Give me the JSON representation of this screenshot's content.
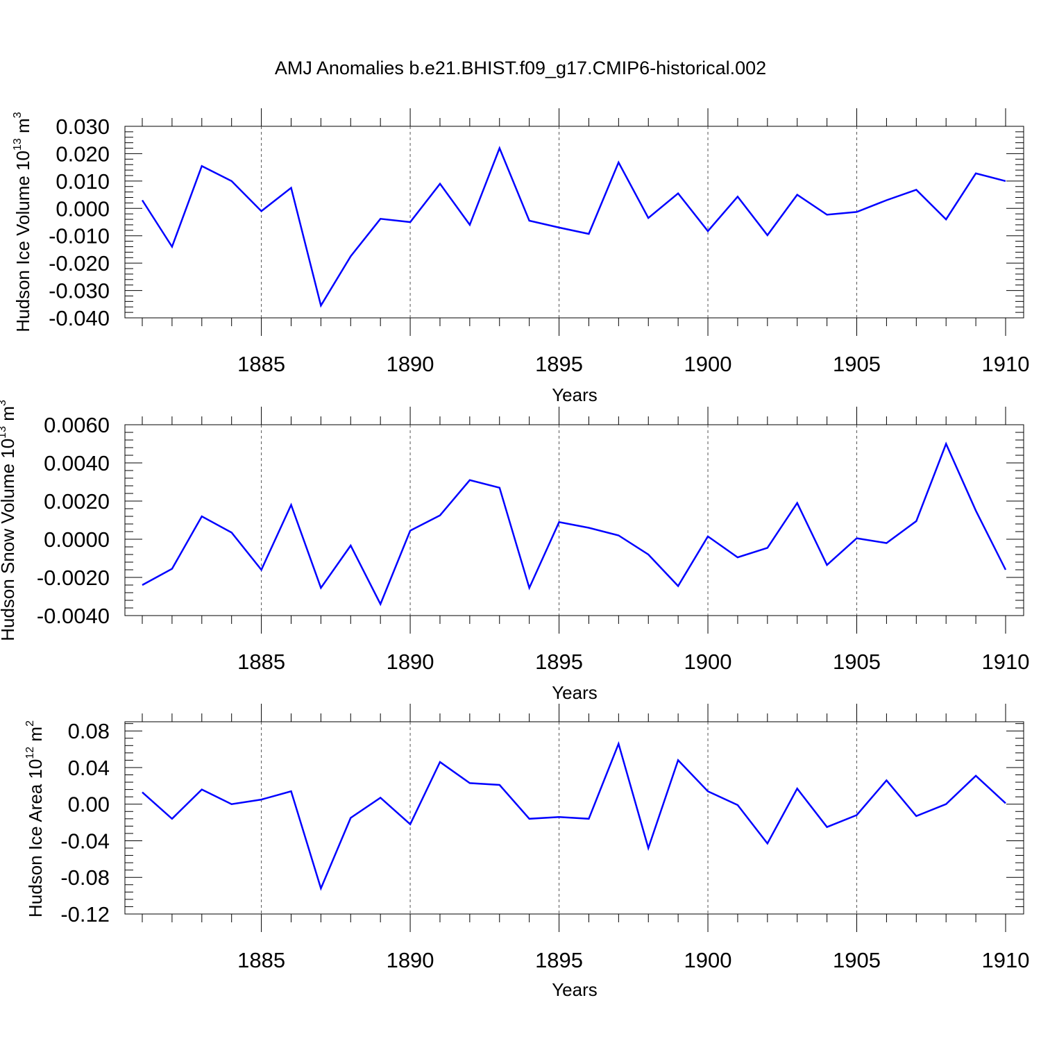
{
  "title": "AMJ Anomalies b.e21.BHIST.f09_g17.CMIP6-historical.002",
  "colors": {
    "line": "#0000ff",
    "axis": "#000000",
    "grid": "#555555"
  },
  "chart_data": [
    {
      "type": "line",
      "ylabel": "Hudson Ice Volume 10",
      "ylabel_exp": "13",
      "ylabel_unit": " m",
      "ylabel_unit_exp": "3",
      "xlabel": "Years",
      "xlim": [
        1881,
        1910
      ],
      "ylim": [
        -0.04,
        0.03
      ],
      "yticks": [
        0.03,
        0.02,
        0.01,
        0.0,
        -0.01,
        -0.02,
        -0.03,
        -0.04
      ],
      "ytick_labels": [
        "0.030",
        "0.020",
        "0.010",
        "0.000",
        "-0.010",
        "-0.020",
        "-0.030",
        "-0.040"
      ],
      "xticks": [
        1885,
        1890,
        1895,
        1900,
        1905,
        1910
      ],
      "xtick_labels": [
        "1885",
        "1890",
        "1895",
        "1900",
        "1905",
        "1910"
      ],
      "grid": "vertical dashed at major x ticks",
      "x": [
        1881,
        1882,
        1883,
        1884,
        1885,
        1886,
        1887,
        1888,
        1889,
        1890,
        1891,
        1892,
        1893,
        1894,
        1895,
        1896,
        1897,
        1898,
        1899,
        1900,
        1901,
        1902,
        1903,
        1904,
        1905,
        1906,
        1907,
        1908,
        1909,
        1910
      ],
      "series": [
        {
          "values": [
            0.003,
            -0.014,
            0.0155,
            0.01,
            -0.001,
            0.0075,
            -0.0355,
            -0.0175,
            -0.0038,
            -0.005,
            0.009,
            -0.006,
            0.022,
            -0.0045,
            -0.007,
            -0.0093,
            0.0168,
            -0.0035,
            0.0055,
            -0.0083,
            0.0043,
            -0.0098,
            0.005,
            -0.0023,
            -0.0013,
            0.003,
            0.0068,
            -0.004,
            0.0128,
            0.01
          ]
        }
      ]
    },
    {
      "type": "line",
      "ylabel": "Hudson Snow Volume 10",
      "ylabel_exp": "13",
      "ylabel_unit": " m",
      "ylabel_unit_exp": "3",
      "xlabel": "Years",
      "xlim": [
        1881,
        1910
      ],
      "ylim": [
        -0.004,
        0.006
      ],
      "yticks": [
        0.006,
        0.004,
        0.002,
        0.0,
        -0.002,
        -0.004
      ],
      "ytick_labels": [
        "0.0060",
        "0.0040",
        "0.0020",
        "0.0000",
        "-0.0020",
        "-0.0040"
      ],
      "xticks": [
        1885,
        1890,
        1895,
        1900,
        1905,
        1910
      ],
      "xtick_labels": [
        "1885",
        "1890",
        "1895",
        "1900",
        "1905",
        "1910"
      ],
      "grid": "vertical dashed at major x ticks",
      "x": [
        1881,
        1882,
        1883,
        1884,
        1885,
        1886,
        1887,
        1888,
        1889,
        1890,
        1891,
        1892,
        1893,
        1894,
        1895,
        1896,
        1897,
        1898,
        1899,
        1900,
        1901,
        1902,
        1903,
        1904,
        1905,
        1906,
        1907,
        1908,
        1909,
        1910
      ],
      "series": [
        {
          "values": [
            -0.0024,
            -0.00155,
            0.0012,
            0.00035,
            -0.0016,
            0.0018,
            -0.00255,
            -0.00033,
            -0.0034,
            0.00045,
            0.00125,
            0.0031,
            0.0027,
            -0.00255,
            0.0009,
            0.0006,
            0.0002,
            -0.0008,
            -0.00245,
            0.00015,
            -0.00095,
            -0.00045,
            0.0019,
            -0.00135,
            5e-05,
            -0.0002,
            0.00095,
            0.005,
            0.0015,
            -0.0016
          ]
        }
      ]
    },
    {
      "type": "line",
      "ylabel": "Hudson Ice Area 10",
      "ylabel_exp": "12",
      "ylabel_unit": " m",
      "ylabel_unit_exp": "2",
      "xlabel": "Years",
      "xlim": [
        1881,
        1910
      ],
      "ylim": [
        -0.12,
        0.09
      ],
      "yticks": [
        0.08,
        0.04,
        0.0,
        -0.04,
        -0.08,
        -0.12
      ],
      "ytick_labels": [
        "0.08",
        "0.04",
        "0.00",
        "-0.04",
        "-0.08",
        "-0.12"
      ],
      "xticks": [
        1885,
        1890,
        1895,
        1900,
        1905,
        1910
      ],
      "xtick_labels": [
        "1885",
        "1890",
        "1895",
        "1900",
        "1905",
        "1910"
      ],
      "grid": "vertical dashed at major x ticks",
      "x": [
        1881,
        1882,
        1883,
        1884,
        1885,
        1886,
        1887,
        1888,
        1889,
        1890,
        1891,
        1892,
        1893,
        1894,
        1895,
        1896,
        1897,
        1898,
        1899,
        1900,
        1901,
        1902,
        1903,
        1904,
        1905,
        1906,
        1907,
        1908,
        1909,
        1910
      ],
      "series": [
        {
          "values": [
            0.013,
            -0.016,
            0.016,
            0.0,
            0.005,
            0.014,
            -0.092,
            -0.015,
            0.007,
            -0.022,
            0.046,
            0.023,
            0.021,
            -0.016,
            -0.014,
            -0.016,
            0.066,
            -0.048,
            0.048,
            0.014,
            -0.001,
            -0.043,
            0.017,
            -0.025,
            -0.012,
            0.026,
            -0.013,
            0.0,
            0.031,
            0.001
          ]
        }
      ]
    }
  ]
}
